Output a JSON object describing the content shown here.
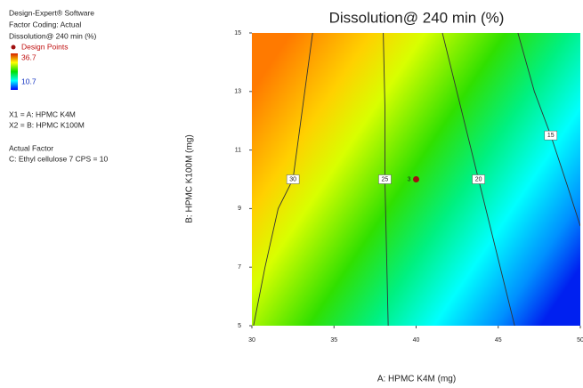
{
  "chart_data": {
    "type": "contour",
    "title": "Dissolution@ 240 min (%)",
    "info": [
      "Design-Expert® Software",
      "Factor Coding: Actual",
      "Dissolution@ 240 min (%)"
    ],
    "design_points_label": "Design Points",
    "color_max": 36.7,
    "color_min": 10.7,
    "colormap": [
      "#d62000",
      "#ffff00",
      "#00e000",
      "#00ffff",
      "#0000ff"
    ],
    "factors": [
      "X1 = A: HPMC K4M",
      "X2 = B: HPMC K100M"
    ],
    "actual_factor_title": "Actual Factor",
    "actual_factor": "C: Ethyl cellulose 7 CPS = 10",
    "xlabel": "A: HPMC K4M (mg)",
    "ylabel": "B: HPMC K100M (mg)",
    "xlim": [
      30,
      50
    ],
    "ylim": [
      5,
      15
    ],
    "xticks": [
      30,
      35,
      40,
      45,
      50
    ],
    "yticks": [
      5,
      7,
      9,
      11,
      13,
      15
    ],
    "contours": [
      {
        "level": 30,
        "x": [
          30.1,
          30.8,
          31.6,
          32.5,
          33.1,
          33.7
        ],
        "y": [
          5,
          7,
          9,
          10,
          12.5,
          15
        ]
      },
      {
        "level": 25,
        "x": [
          38.3,
          38.2,
          38.1,
          38.1,
          38.0
        ],
        "y": [
          5,
          7.5,
          10,
          12.5,
          15
        ]
      },
      {
        "level": 20,
        "x": [
          46.0,
          44.9,
          43.8,
          42.7,
          41.6
        ],
        "y": [
          5,
          7.5,
          10,
          12.5,
          15
        ]
      },
      {
        "level": 15,
        "x": [
          50,
          49.2,
          48.2,
          47.2,
          46.2
        ],
        "y": [
          8.4,
          9.8,
          11.5,
          13,
          15
        ]
      }
    ],
    "design_points": {
      "x": [
        40
      ],
      "y": [
        10
      ],
      "counts": [
        3
      ],
      "color": "#a01010"
    }
  }
}
